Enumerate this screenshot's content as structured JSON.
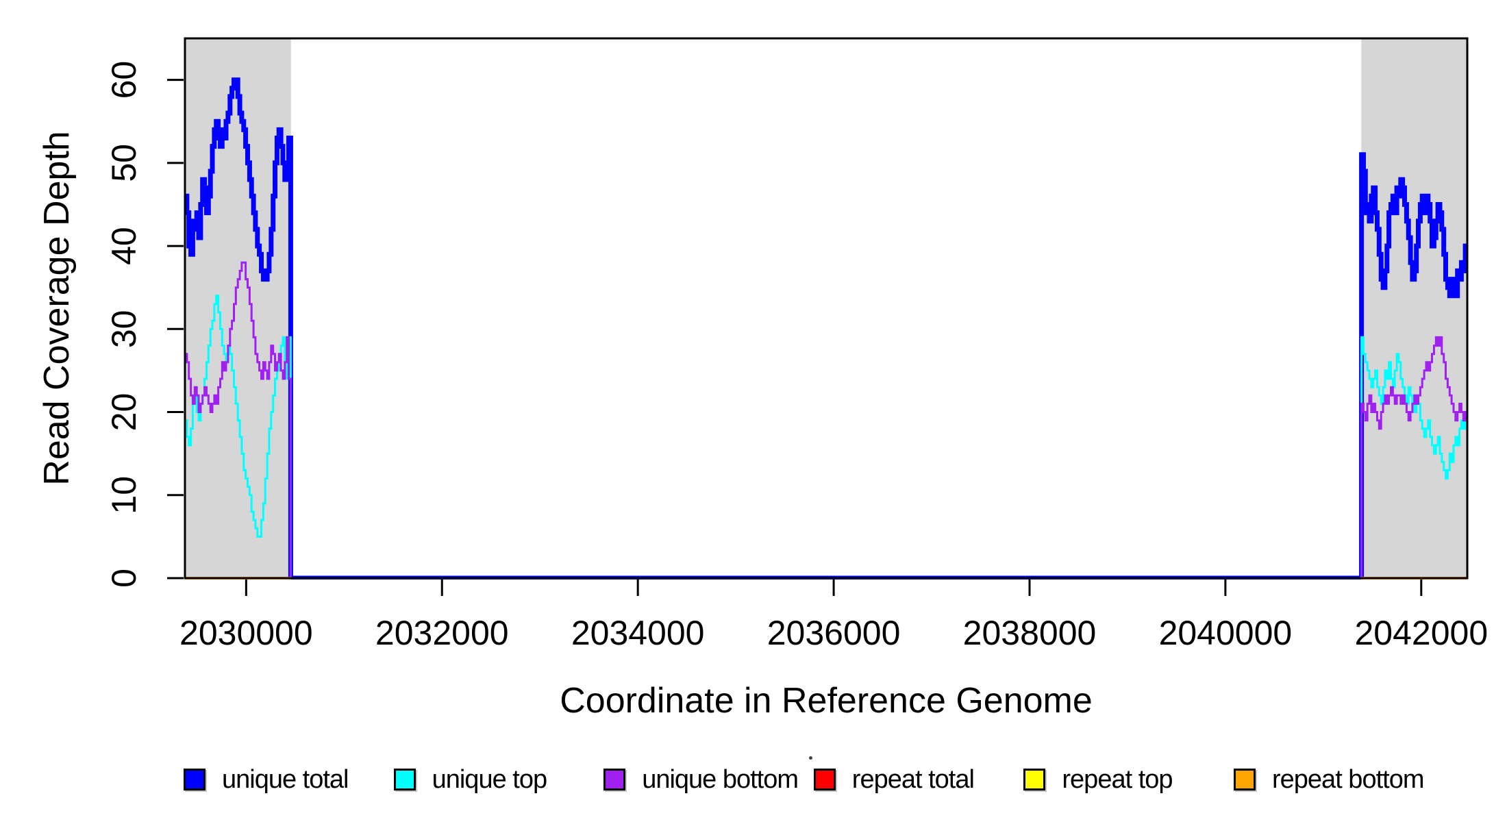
{
  "figure": {
    "background": "#FFFFFF"
  },
  "chart_data": {
    "type": "line",
    "subtype": "step-coverage",
    "title": "",
    "xlabel": "Coordinate in Reference Genome",
    "ylabel": "Read Coverage Depth",
    "xlim": [
      2029375,
      2042470
    ],
    "ylim": [
      0,
      65
    ],
    "x_ticks": [
      2030000,
      2032000,
      2034000,
      2036000,
      2038000,
      2040000,
      2042000
    ],
    "y_ticks": [
      0,
      10,
      20,
      30,
      40,
      50,
      60
    ],
    "grid": false,
    "frame_color": "#000000",
    "shade_color": "#D6D6D6",
    "shaded_regions": [
      {
        "x0": 2029375,
        "x1": 2030458
      },
      {
        "x0": 2041388,
        "x1": 2042470
      }
    ],
    "window_step": 20,
    "left_region_x_start": 2029375,
    "right_region_x_start": 2041390,
    "zero_between_regions": true,
    "series": [
      {
        "name": "unique total",
        "color": "#0000FF",
        "line_width": 7,
        "left_values": [
          46,
          44,
          40,
          39,
          43,
          42,
          44,
          41,
          45,
          48,
          47,
          44,
          46,
          49,
          52,
          54,
          55,
          53,
          52,
          54,
          53,
          55,
          56,
          58,
          59,
          60,
          60,
          58,
          56,
          55,
          54,
          52,
          50,
          48,
          46,
          44,
          42,
          40,
          39,
          37,
          36,
          36,
          37,
          39,
          42,
          46,
          50,
          53,
          54,
          52,
          50,
          48,
          50,
          53
        ],
        "right_values": [
          51,
          49,
          44,
          45,
          43,
          46,
          47,
          44,
          42,
          39,
          36,
          35,
          37,
          40,
          44,
          45,
          46,
          44,
          47,
          46,
          48,
          47,
          45,
          43,
          41,
          38,
          36,
          37,
          40,
          43,
          45,
          46,
          44,
          46,
          45,
          43,
          40,
          41,
          43,
          45,
          44,
          42,
          39,
          36,
          35,
          34,
          36,
          35,
          34,
          37,
          36,
          38,
          37,
          40
        ]
      },
      {
        "name": "unique top",
        "color": "#00FFFF",
        "line_width": 3,
        "left_values": [
          19,
          17,
          16,
          18,
          21,
          22,
          20,
          19,
          21,
          22,
          24,
          26,
          28,
          30,
          31,
          33,
          34,
          32,
          30,
          28,
          27,
          26,
          28,
          27,
          25,
          23,
          21,
          19,
          17,
          15,
          13,
          12,
          11,
          10,
          8,
          7,
          6,
          5,
          5,
          7,
          9,
          12,
          15,
          18,
          20,
          22,
          24,
          25,
          27,
          28,
          29,
          26,
          24,
          29
        ],
        "right_values": [
          29,
          27,
          26,
          25,
          24,
          23,
          24,
          25,
          23,
          22,
          21,
          23,
          25,
          24,
          26,
          24,
          23,
          25,
          27,
          26,
          24,
          23,
          22,
          21,
          23,
          22,
          21,
          20,
          22,
          21,
          19,
          18,
          17,
          18,
          19,
          17,
          16,
          15,
          16,
          17,
          15,
          14,
          13,
          12,
          13,
          15,
          14,
          16,
          17,
          16,
          18,
          19,
          18,
          19
        ]
      },
      {
        "name": "unique bottom",
        "color": "#A020F0",
        "line_width": 3,
        "left_values": [
          27,
          26,
          24,
          22,
          21,
          23,
          22,
          20,
          21,
          22,
          23,
          22,
          21,
          20,
          21,
          22,
          21,
          23,
          24,
          26,
          25,
          26,
          28,
          30,
          31,
          33,
          35,
          36,
          37,
          38,
          38,
          36,
          35,
          33,
          31,
          29,
          27,
          26,
          25,
          24,
          26,
          25,
          24,
          26,
          28,
          27,
          25,
          26,
          27,
          25,
          24,
          26,
          29,
          24
        ],
        "right_values": [
          21,
          20,
          19,
          21,
          22,
          20,
          21,
          20,
          19,
          18,
          20,
          21,
          22,
          21,
          22,
          23,
          22,
          21,
          22,
          22,
          21,
          22,
          21,
          20,
          19,
          20,
          21,
          22,
          21,
          22,
          23,
          24,
          25,
          26,
          25,
          26,
          27,
          28,
          29,
          28,
          29,
          27,
          26,
          24,
          23,
          22,
          21,
          20,
          19,
          20,
          21,
          20,
          19,
          20
        ]
      },
      {
        "name": "repeat total",
        "color": "#FF0000",
        "line_width": 4,
        "flat_zero_in_shaded": true
      },
      {
        "name": "repeat top",
        "color": "#FFFF00",
        "line_width": 4,
        "flat_zero_in_shaded": true
      },
      {
        "name": "repeat bottom",
        "color": "#FFA500",
        "line_width": 4,
        "flat_zero_in_shaded": true
      }
    ],
    "legend": {
      "position": "bottom",
      "items": [
        {
          "label": "unique total",
          "color": "#0000FF"
        },
        {
          "label": "unique top",
          "color": "#00FFFF"
        },
        {
          "label": "unique bottom",
          "color": "#A020F0"
        },
        {
          "label": "repeat total",
          "color": "#FF0000"
        },
        {
          "label": "repeat top",
          "color": "#FFFF00"
        },
        {
          "label": "repeat bottom",
          "color": "#FFA500"
        }
      ]
    }
  }
}
